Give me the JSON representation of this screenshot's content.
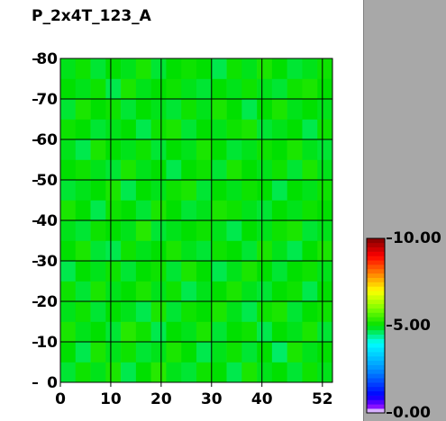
{
  "chart_data": {
    "type": "heatmap",
    "title": "P_2x4T_123_A",
    "xlim": [
      0,
      54
    ],
    "ylim": [
      0,
      80
    ],
    "xticks": [
      0,
      10,
      20,
      30,
      40,
      52
    ],
    "yticks": [
      0,
      10,
      20,
      30,
      40,
      50,
      60,
      70,
      80
    ],
    "grid": true,
    "x_edges": [
      0,
      3,
      6,
      9,
      12,
      15,
      18,
      21,
      24,
      27,
      30,
      33,
      36,
      39,
      42,
      45,
      48,
      51,
      54
    ],
    "y_edges": [
      0,
      5,
      10,
      15,
      20,
      25,
      30,
      35,
      40,
      45,
      50,
      55,
      60,
      65,
      70,
      75,
      80
    ],
    "z": [
      [
        4.8,
        5.1,
        4.9,
        5.2,
        4.7,
        5.0,
        5.3,
        4.9,
        4.8,
        5.1,
        5.0,
        4.7,
        5.2,
        4.9,
        5.0,
        4.8,
        5.1,
        4.9
      ],
      [
        5.0,
        4.7,
        5.2,
        4.9,
        5.1,
        4.8,
        4.9,
        5.2,
        5.0,
        4.7,
        4.9,
        5.1,
        4.8,
        5.0,
        4.6,
        5.2,
        4.9,
        5.0
      ],
      [
        5.2,
        4.9,
        5.0,
        4.8,
        5.3,
        5.1,
        4.7,
        5.0,
        4.9,
        5.2,
        4.8,
        5.0,
        5.1,
        4.7,
        5.0,
        4.9,
        5.2,
        4.8
      ],
      [
        4.9,
        5.1,
        4.8,
        5.0,
        4.9,
        4.7,
        5.2,
        4.8,
        5.1,
        5.0,
        5.2,
        4.9,
        4.7,
        5.1,
        5.2,
        4.8,
        5.0,
        5.1
      ],
      [
        5.1,
        4.8,
        5.2,
        4.9,
        5.0,
        5.2,
        4.9,
        5.1,
        4.7,
        4.9,
        5.0,
        5.2,
        4.9,
        4.8,
        5.0,
        5.1,
        4.7,
        5.0
      ],
      [
        4.7,
        5.0,
        4.9,
        5.1,
        4.8,
        5.0,
        5.1,
        4.8,
        5.2,
        5.0,
        4.7,
        4.9,
        5.2,
        5.0,
        4.8,
        5.0,
        5.1,
        4.9
      ],
      [
        5.0,
        5.2,
        4.8,
        4.7,
        5.1,
        4.9,
        5.0,
        5.2,
        4.9,
        4.8,
        5.1,
        5.0,
        4.8,
        5.2,
        4.9,
        4.7,
        5.0,
        5.2
      ],
      [
        4.9,
        4.8,
        5.1,
        5.0,
        4.9,
        5.3,
        4.8,
        4.9,
        5.0,
        5.1,
        4.9,
        4.7,
        5.0,
        4.9,
        5.1,
        5.2,
        4.8,
        4.9
      ],
      [
        5.2,
        5.0,
        4.7,
        5.1,
        5.0,
        4.8,
        5.2,
        5.0,
        4.8,
        4.9,
        5.2,
        5.1,
        4.9,
        4.8,
        5.0,
        4.9,
        5.1,
        5.0
      ],
      [
        4.8,
        4.9,
        5.0,
        5.2,
        4.7,
        5.0,
        4.9,
        5.1,
        5.2,
        4.8,
        5.0,
        4.9,
        5.1,
        5.0,
        4.7,
        5.0,
        4.9,
        5.1
      ],
      [
        5.0,
        5.1,
        4.9,
        4.8,
        5.2,
        4.9,
        5.0,
        4.7,
        5.0,
        5.1,
        4.8,
        5.2,
        5.0,
        4.9,
        5.1,
        4.8,
        5.2,
        4.9
      ],
      [
        4.9,
        4.7,
        5.2,
        5.0,
        4.9,
        5.1,
        4.8,
        5.0,
        4.9,
        5.2,
        5.0,
        4.8,
        4.9,
        5.1,
        5.0,
        5.2,
        4.9,
        4.8
      ],
      [
        5.1,
        5.0,
        4.8,
        4.9,
        5.0,
        4.7,
        5.1,
        5.2,
        4.8,
        5.0,
        4.9,
        5.1,
        5.2,
        4.8,
        4.9,
        5.0,
        4.7,
        5.1
      ],
      [
        4.8,
        5.2,
        5.0,
        5.1,
        4.8,
        5.0,
        4.9,
        4.8,
        5.1,
        4.9,
        5.2,
        5.0,
        4.7,
        5.0,
        5.2,
        4.9,
        5.0,
        4.9
      ],
      [
        5.0,
        4.9,
        5.1,
        4.7,
        5.2,
        4.9,
        5.0,
        5.1,
        4.9,
        4.8,
        5.0,
        4.9,
        5.1,
        4.9,
        4.8,
        5.1,
        5.2,
        5.0
      ],
      [
        4.9,
        5.1,
        4.8,
        5.0,
        4.9,
        5.2,
        4.8,
        5.0,
        5.1,
        5.0,
        4.7,
        5.1,
        4.9,
        5.2,
        5.0,
        4.8,
        4.9,
        5.1
      ]
    ],
    "colorscale": [
      [
        0,
        "#ffffff"
      ],
      [
        0.4,
        "#8000ff"
      ],
      [
        1,
        "#0000ff"
      ],
      [
        2.5,
        "#0090ff"
      ],
      [
        4,
        "#00ffff"
      ],
      [
        5,
        "#00e000"
      ],
      [
        6,
        "#80ff00"
      ],
      [
        7,
        "#ffff00"
      ],
      [
        8,
        "#ff8000"
      ],
      [
        9,
        "#ff0000"
      ],
      [
        10,
        "#800000"
      ]
    ],
    "colorbar_lim": [
      0,
      10
    ],
    "colorbar_ticks": [
      {
        "value": 0,
        "label": "0.00"
      },
      {
        "value": 5,
        "label": "5.00"
      },
      {
        "value": 10,
        "label": "10.00"
      }
    ]
  }
}
